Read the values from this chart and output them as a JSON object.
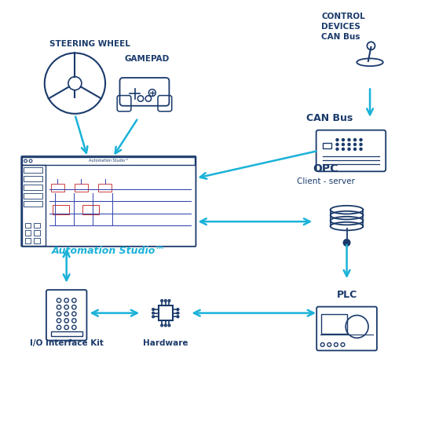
{
  "bg_color": "#ffffff",
  "line_color": "#1a3a6b",
  "arrow_color": "#1ab2d8",
  "title_color": "#1a3a6b",
  "accent_color": "#1ab2d8",
  "labels": {
    "steering_wheel": "STEERING WHEEL",
    "gamepad": "GAMEPAD",
    "control_devices": "CONTROL\nDEVICES\nCAN Bus",
    "can_bus": "CAN Bus",
    "automation_studio": "Automation Studio™",
    "opc": "OPC",
    "opc_sub": "Client - server",
    "io_interface": "I/O Interface Kit",
    "hardware": "Hardware",
    "plc": "PLC"
  },
  "figsize": [
    5.45,
    5.45
  ],
  "dpi": 100
}
